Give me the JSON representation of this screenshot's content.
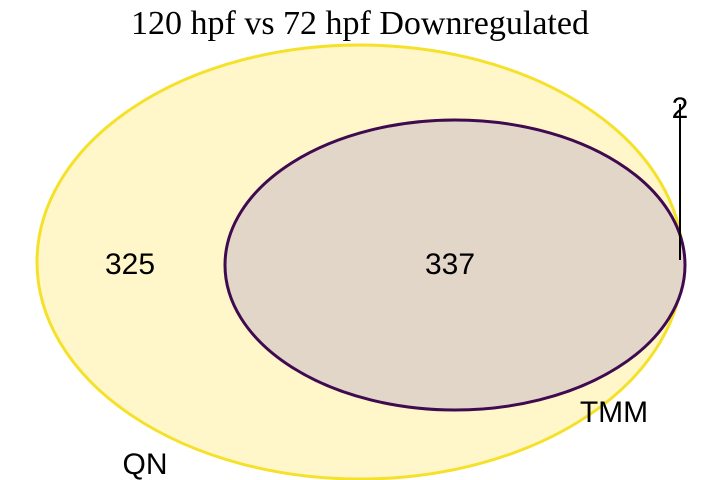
{
  "title": "120 hpf vs 72 hpf Downregulated",
  "sets": [
    {
      "id": "qn",
      "label": "QN",
      "fill": "#fff7c9",
      "stroke": "#f5e12a"
    },
    {
      "id": "tmm",
      "label": "TMM",
      "fill": "#e2d6c9",
      "stroke": "#3f0a4f"
    }
  ],
  "regions": {
    "qn_only": "325",
    "both": "337",
    "tmm_only": "2"
  },
  "colors": {
    "background": "#ffffff",
    "leader_line": "#000000"
  }
}
